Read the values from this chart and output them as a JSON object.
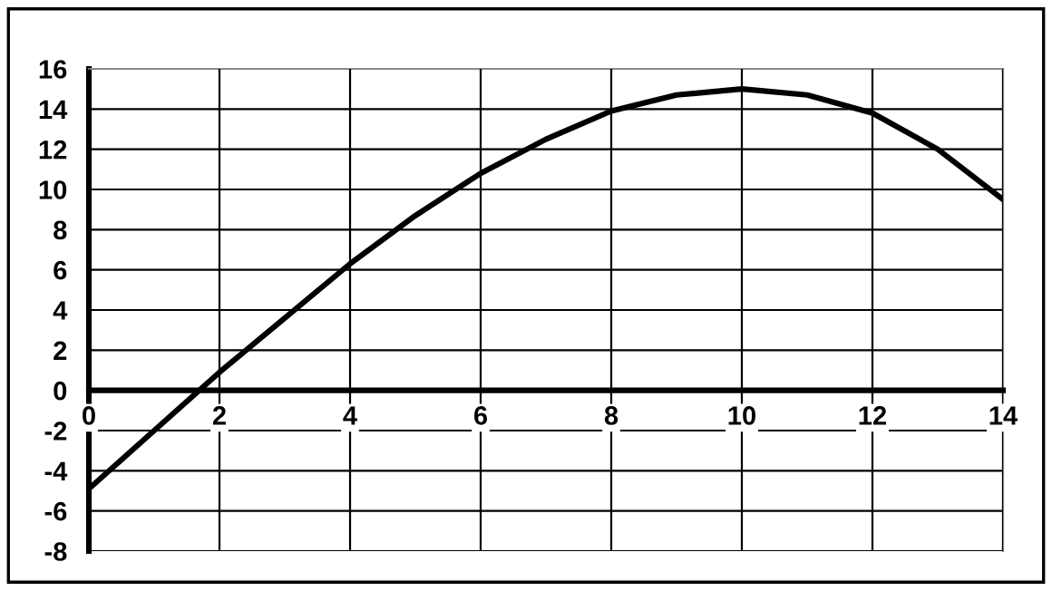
{
  "chart_data": {
    "type": "line",
    "x": [
      0,
      1,
      2,
      3,
      4,
      5,
      6,
      7,
      8,
      9,
      10,
      11,
      12,
      13,
      14
    ],
    "series": [
      {
        "color": "#000000",
        "values": [
          -4.9,
          -2.0,
          0.9,
          3.6,
          6.3,
          8.7,
          10.8,
          12.5,
          13.9,
          14.7,
          15.0,
          14.7,
          13.8,
          12.0,
          9.5
        ]
      }
    ],
    "xlim": [
      0,
      14
    ],
    "xticks": [
      0,
      2,
      4,
      6,
      8,
      10,
      12,
      14
    ],
    "ylim": [
      -8,
      16
    ],
    "yticks": [
      -8,
      -6,
      -4,
      -2,
      0,
      2,
      4,
      6,
      8,
      10,
      12,
      14,
      16
    ],
    "grid": true,
    "marker": "none",
    "line_style": "solid"
  }
}
